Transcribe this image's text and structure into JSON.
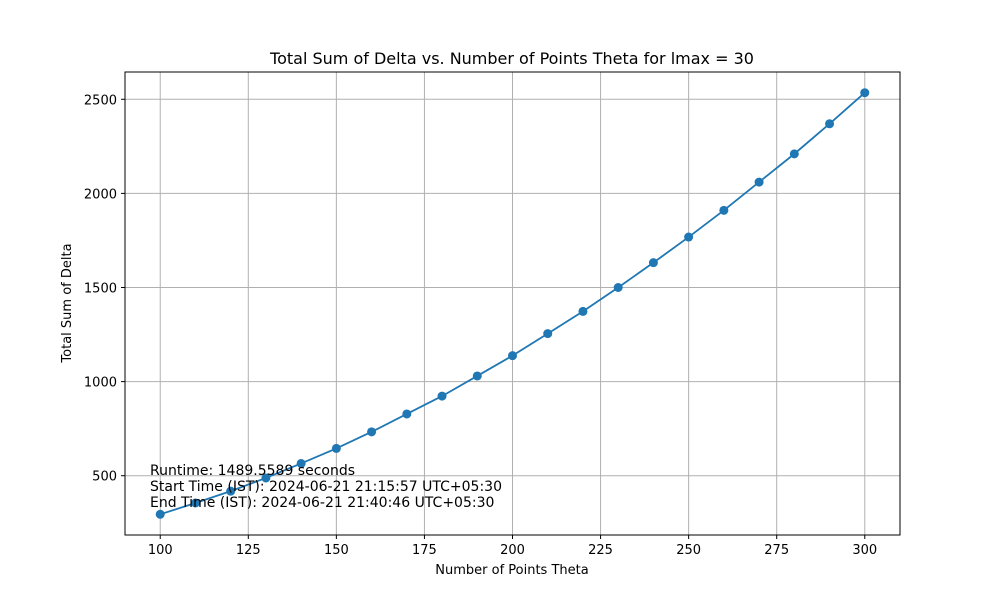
{
  "chart_data": {
    "type": "line",
    "title": "Total Sum of Delta vs. Number of Points Theta for lmax = 30",
    "xlabel": "Number of Points Theta",
    "ylabel": "Total Sum of Delta",
    "xlim": [
      90,
      310
    ],
    "ylim": [
      185,
      2645
    ],
    "xticks": [
      100,
      125,
      150,
      175,
      200,
      225,
      250,
      275,
      300
    ],
    "yticks": [
      500,
      1000,
      1500,
      2000,
      2500
    ],
    "grid": true,
    "marker": "circle",
    "color": "#1f77b4",
    "series": [
      {
        "x": [
          100,
          110,
          120,
          130,
          140,
          150,
          160,
          170,
          180,
          190,
          200,
          210,
          220,
          230,
          240,
          250,
          260,
          270,
          280,
          290,
          300
        ],
        "values": [
          295,
          355,
          418,
          488,
          565,
          645,
          733,
          828,
          923,
          1030,
          1138,
          1255,
          1373,
          1500,
          1632,
          1768,
          1910,
          2060,
          2210,
          2370,
          2535
        ]
      }
    ],
    "annotations": [
      "Runtime: 1489.5589 seconds",
      "Start Time (IST): 2024-06-21 21:15:57 UTC+05:30",
      "End Time (IST): 2024-06-21 21:40:46 UTC+05:30"
    ]
  }
}
